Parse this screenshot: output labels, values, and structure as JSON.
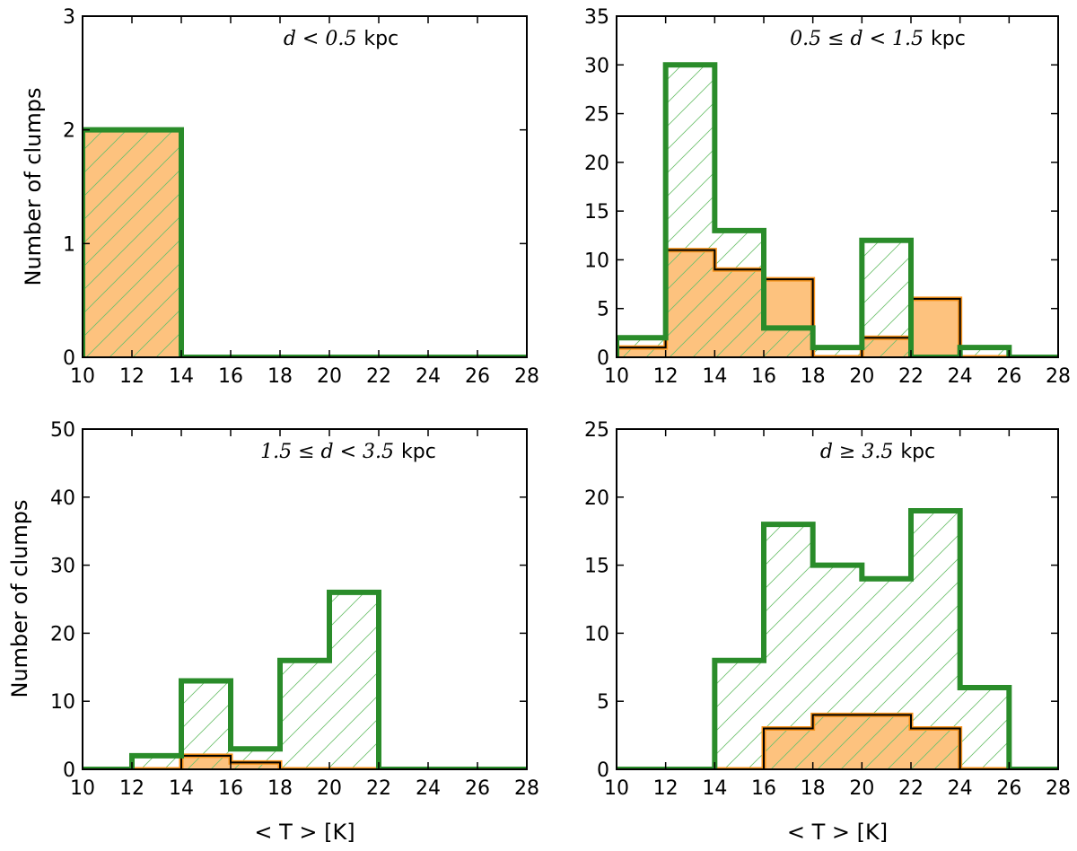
{
  "colors": {
    "total_edge": "#2a8c2a",
    "total_hatch": "#6cc06c",
    "subset_fill": "#fdc27e",
    "subset_edge_outer": "#f7941d",
    "subset_edge_inner": "#000000"
  },
  "chart_data": [
    {
      "type": "bar",
      "subtype": "step-histogram",
      "annotation": {
        "math": "d < 0.5",
        "unit": "kpc"
      },
      "bin_edges": [
        10,
        14,
        16,
        18,
        20,
        22,
        24,
        26,
        28
      ],
      "series": [
        {
          "values": [
            2,
            0,
            0,
            0,
            0,
            0,
            0,
            0
          ]
        },
        {
          "values": [
            2,
            0,
            0,
            0,
            0,
            0,
            0,
            0
          ]
        }
      ],
      "xlim": [
        10,
        28
      ],
      "ylim": [
        0,
        3
      ],
      "xticks": [
        "10",
        "12",
        "14",
        "16",
        "18",
        "20",
        "22",
        "24",
        "26",
        "28"
      ],
      "yticks": [
        "0",
        "1",
        "2",
        "3"
      ],
      "ytick_values": [
        0,
        1,
        2,
        3
      ],
      "ylabel": "Number of clumps",
      "xlabel": ""
    },
    {
      "type": "bar",
      "subtype": "step-histogram",
      "annotation": {
        "math": "0.5 ≤ d < 1.5",
        "unit": "kpc"
      },
      "bin_edges": [
        10,
        12,
        14,
        16,
        18,
        20,
        22,
        24,
        26,
        28
      ],
      "series": [
        {
          "values": [
            2,
            30,
            13,
            3,
            1,
            12,
            0,
            1,
            0
          ]
        },
        {
          "values": [
            1,
            11,
            9,
            8,
            0,
            2,
            6,
            0,
            0
          ]
        }
      ],
      "xlim": [
        10,
        28
      ],
      "ylim": [
        0,
        35
      ],
      "xticks": [
        "10",
        "12",
        "14",
        "16",
        "18",
        "20",
        "22",
        "24",
        "26",
        "28"
      ],
      "yticks": [
        "0",
        "5",
        "10",
        "15",
        "20",
        "25",
        "30",
        "35"
      ],
      "ytick_values": [
        0,
        5,
        10,
        15,
        20,
        25,
        30,
        35
      ],
      "ylabel": "",
      "xlabel": ""
    },
    {
      "type": "bar",
      "subtype": "step-histogram",
      "annotation": {
        "math": "1.5 ≤ d < 3.5",
        "unit": "kpc"
      },
      "bin_edges": [
        10,
        12,
        14,
        16,
        18,
        20,
        22,
        24,
        26,
        28
      ],
      "series": [
        {
          "values": [
            0,
            2,
            13,
            3,
            16,
            26,
            0,
            0,
            0
          ]
        },
        {
          "values": [
            0,
            0,
            2,
            1,
            0,
            0,
            0,
            0,
            0
          ]
        }
      ],
      "xlim": [
        10,
        28
      ],
      "ylim": [
        0,
        50
      ],
      "xticks": [
        "10",
        "12",
        "14",
        "16",
        "18",
        "20",
        "22",
        "24",
        "26",
        "28"
      ],
      "yticks": [
        "0",
        "10",
        "20",
        "30",
        "40",
        "50"
      ],
      "ytick_values": [
        0,
        10,
        20,
        30,
        40,
        50
      ],
      "ylabel": "Number of clumps",
      "xlabel": "< T >  [K]"
    },
    {
      "type": "bar",
      "subtype": "step-histogram",
      "annotation": {
        "math": "d ≥ 3.5",
        "unit": "kpc"
      },
      "bin_edges": [
        10,
        12,
        14,
        16,
        18,
        20,
        22,
        24,
        26,
        28
      ],
      "series": [
        {
          "values": [
            0,
            0,
            8,
            18,
            15,
            14,
            19,
            6,
            0
          ]
        },
        {
          "values": [
            0,
            0,
            0,
            3,
            4,
            4,
            3,
            0,
            0
          ]
        }
      ],
      "xlim": [
        10,
        28
      ],
      "ylim": [
        0,
        25
      ],
      "xticks": [
        "10",
        "12",
        "14",
        "16",
        "18",
        "20",
        "22",
        "24",
        "26",
        "28"
      ],
      "yticks": [
        "0",
        "5",
        "10",
        "15",
        "20",
        "25"
      ],
      "ytick_values": [
        0,
        5,
        10,
        15,
        20,
        25
      ],
      "ylabel": "",
      "xlabel": "< T >  [K]"
    }
  ]
}
